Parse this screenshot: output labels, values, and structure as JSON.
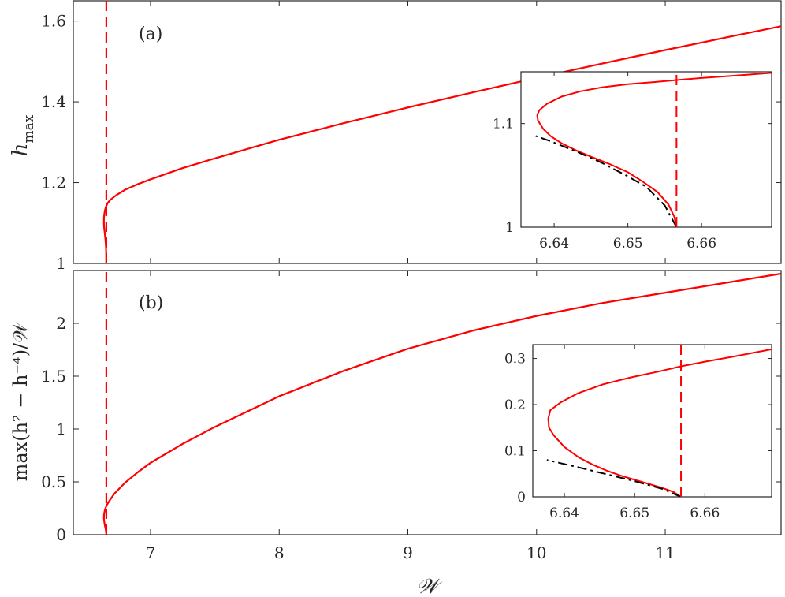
{
  "chart_data": [
    {
      "id": "a",
      "type": "line",
      "panel_label": "(a)",
      "xlabel": "𝒲",
      "ylabel_base": "h",
      "ylabel_sub": "max",
      "xlim": [
        6.4,
        11.9
      ],
      "ylim": [
        1.0,
        1.65
      ],
      "xticks": [
        7,
        8,
        9,
        10,
        11
      ],
      "yticks": [
        1,
        1.2,
        1.4,
        1.6
      ],
      "ytick_labels": [
        "1",
        "1.2",
        "1.4",
        "1.6"
      ],
      "grid": false,
      "colors": {
        "solution": "#ff0000",
        "asymptotic": "#000000"
      },
      "series": [
        {
          "style": "solid",
          "color": "#ff0000",
          "x": [
            6.6566,
            6.6565,
            6.656,
            6.654,
            6.65,
            6.646,
            6.643,
            6.64,
            6.638,
            6.6378,
            6.638,
            6.641,
            6.647,
            6.656,
            6.668,
            6.69,
            6.73,
            6.8,
            6.9,
            7.0,
            7.25,
            7.5,
            8.0,
            8.5,
            9.0,
            9.5,
            10.0,
            10.5,
            11.0,
            11.5,
            11.9
          ],
          "y": [
            1.0,
            1.005,
            1.02,
            1.04,
            1.058,
            1.07,
            1.079,
            1.087,
            1.097,
            1.105,
            1.113,
            1.122,
            1.133,
            1.142,
            1.15,
            1.158,
            1.168,
            1.182,
            1.196,
            1.208,
            1.236,
            1.26,
            1.306,
            1.347,
            1.386,
            1.423,
            1.459,
            1.494,
            1.528,
            1.561,
            1.587
          ]
        },
        {
          "style": "dashed",
          "color": "#ff0000",
          "x": [
            6.6566,
            6.6566
          ],
          "y": [
            1.0,
            1.65
          ]
        }
      ],
      "inset": {
        "xlim": [
          6.6355,
          6.6695
        ],
        "ylim": [
          1.0,
          1.15
        ],
        "xticks": [
          6.64,
          6.65,
          6.66
        ],
        "yticks": [
          1,
          1.1
        ],
        "ytick_labels": [
          "1",
          "1.1"
        ],
        "series": [
          {
            "style": "solid",
            "color": "#ff0000",
            "x": [
              6.6566,
              6.6563,
              6.6555,
              6.654,
              6.652,
              6.65,
              6.6475,
              6.645,
              6.643,
              6.641,
              6.6395,
              6.6385,
              6.6378,
              6.6377,
              6.638,
              6.639,
              6.641,
              6.6435,
              6.6465,
              6.65,
              6.6535,
              6.6566,
              6.66,
              6.664,
              6.6695
            ],
            "y": [
              1.0,
              1.01,
              1.022,
              1.034,
              1.044,
              1.053,
              1.061,
              1.068,
              1.074,
              1.081,
              1.088,
              1.095,
              1.103,
              1.108,
              1.113,
              1.119,
              1.126,
              1.131,
              1.135,
              1.138,
              1.14,
              1.142,
              1.144,
              1.146,
              1.149
            ]
          },
          {
            "style": "dashdot",
            "color": "#000000",
            "x": [
              6.6566,
              6.655,
              6.6525,
              6.65,
              6.6465,
              6.643,
              6.6395,
              6.6375
            ],
            "y": [
              1.0,
              1.021,
              1.039,
              1.049,
              1.062,
              1.073,
              1.083,
              1.088
            ]
          },
          {
            "style": "dashed",
            "color": "#ff0000",
            "x": [
              6.6566,
              6.6566
            ],
            "y": [
              1.0,
              1.15
            ]
          }
        ]
      }
    },
    {
      "id": "b",
      "type": "line",
      "panel_label": "(b)",
      "xlabel": "𝒲",
      "ylabel_text": "max(h² − h⁻⁴)/𝒲",
      "xlim": [
        6.4,
        11.9
      ],
      "ylim": [
        0,
        2.5
      ],
      "xticks": [
        7,
        8,
        9,
        10,
        11
      ],
      "xtick_labels": [
        "7",
        "8",
        "9",
        "10",
        "11"
      ],
      "yticks": [
        0,
        0.5,
        1,
        1.5,
        2
      ],
      "ytick_labels": [
        "0",
        "0.5",
        "1",
        "1.5",
        "2"
      ],
      "grid": false,
      "series": [
        {
          "style": "solid",
          "color": "#ff0000",
          "x": [
            6.6566,
            6.6565,
            6.655,
            6.65,
            6.645,
            6.641,
            6.638,
            6.6378,
            6.639,
            6.643,
            6.65,
            6.66,
            6.68,
            6.72,
            6.8,
            6.9,
            7.0,
            7.25,
            7.5,
            8.0,
            8.5,
            9.0,
            9.5,
            10.0,
            10.5,
            11.0,
            11.5,
            11.9
          ],
          "y": [
            0.0,
            0.01,
            0.03,
            0.06,
            0.09,
            0.12,
            0.15,
            0.17,
            0.19,
            0.22,
            0.25,
            0.28,
            0.32,
            0.39,
            0.49,
            0.59,
            0.68,
            0.86,
            1.02,
            1.31,
            1.55,
            1.76,
            1.93,
            2.07,
            2.19,
            2.29,
            2.39,
            2.47
          ]
        },
        {
          "style": "dashed",
          "color": "#ff0000",
          "x": [
            6.6566,
            6.6566
          ],
          "y": [
            0,
            2.5
          ]
        }
      ],
      "inset": {
        "xlim": [
          6.6355,
          6.6695
        ],
        "ylim": [
          0,
          0.33
        ],
        "xticks": [
          6.64,
          6.65,
          6.66
        ],
        "yticks": [
          0,
          0.1,
          0.2,
          0.3
        ],
        "ytick_labels": [
          "0",
          "0.1",
          "0.2",
          "0.3"
        ],
        "series": [
          {
            "style": "solid",
            "color": "#ff0000",
            "x": [
              6.6566,
              6.6555,
              6.654,
              6.652,
              6.65,
              6.648,
              6.646,
              6.644,
              6.642,
              6.64,
              6.6385,
              6.6378,
              6.6377,
              6.638,
              6.6395,
              6.642,
              6.6455,
              6.6495,
              6.6535,
              6.6566,
              6.66,
              6.664,
              6.6695
            ],
            "y": [
              0.0,
              0.011,
              0.019,
              0.028,
              0.037,
              0.046,
              0.057,
              0.07,
              0.086,
              0.108,
              0.133,
              0.15,
              0.17,
              0.188,
              0.205,
              0.225,
              0.244,
              0.259,
              0.272,
              0.283,
              0.293,
              0.304,
              0.32
            ]
          },
          {
            "style": "dashdot",
            "color": "#000000",
            "x": [
              6.6566,
              6.654,
              6.65,
              6.646,
              6.642,
              6.6375
            ],
            "y": [
              0.0,
              0.017,
              0.034,
              0.049,
              0.064,
              0.08
            ]
          },
          {
            "style": "dashed",
            "color": "#ff0000",
            "x": [
              6.6566,
              6.6566
            ],
            "y": [
              0,
              0.33
            ]
          }
        ]
      }
    }
  ]
}
